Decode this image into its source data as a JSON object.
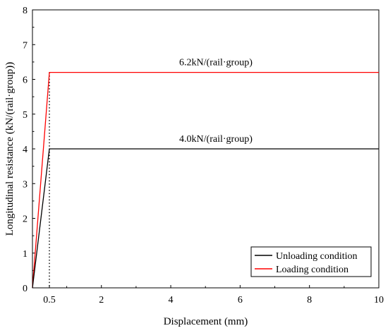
{
  "chart_data": {
    "type": "line",
    "xlabel": "Displacement (mm)",
    "ylabel": "Longitudinal resistance (kN/(rail·group))",
    "xlim": [
      0,
      10
    ],
    "ylim": [
      0,
      8
    ],
    "x_ticks": [
      0.5,
      2,
      4,
      6,
      8,
      10
    ],
    "x_tick_labels": [
      "0.5",
      "2",
      "4",
      "6",
      "8",
      "10"
    ],
    "y_ticks": [
      0,
      1,
      2,
      3,
      4,
      5,
      6,
      7,
      8
    ],
    "y_tick_labels": [
      "0",
      "1",
      "2",
      "3",
      "4",
      "5",
      "6",
      "7",
      "8"
    ],
    "grid": false,
    "legend_position": "bottom-right",
    "series": [
      {
        "name": "Unloading condition",
        "color": "#000000",
        "x": [
          0,
          0.5,
          10
        ],
        "y": [
          0,
          4.0,
          4.0
        ]
      },
      {
        "name": "Loading condition",
        "color": "#ff0000",
        "x": [
          0,
          0.5,
          10
        ],
        "y": [
          0,
          6.2,
          6.2
        ]
      }
    ],
    "reference_line": {
      "x": 0.5,
      "style": "dotted",
      "color": "#000000"
    },
    "annotations": [
      {
        "text": "6.2kN/(rail·group)",
        "x": 5.3,
        "y": 6.2
      },
      {
        "text": "4.0kN/(rail·group)",
        "x": 5.3,
        "y": 4.0
      }
    ]
  }
}
